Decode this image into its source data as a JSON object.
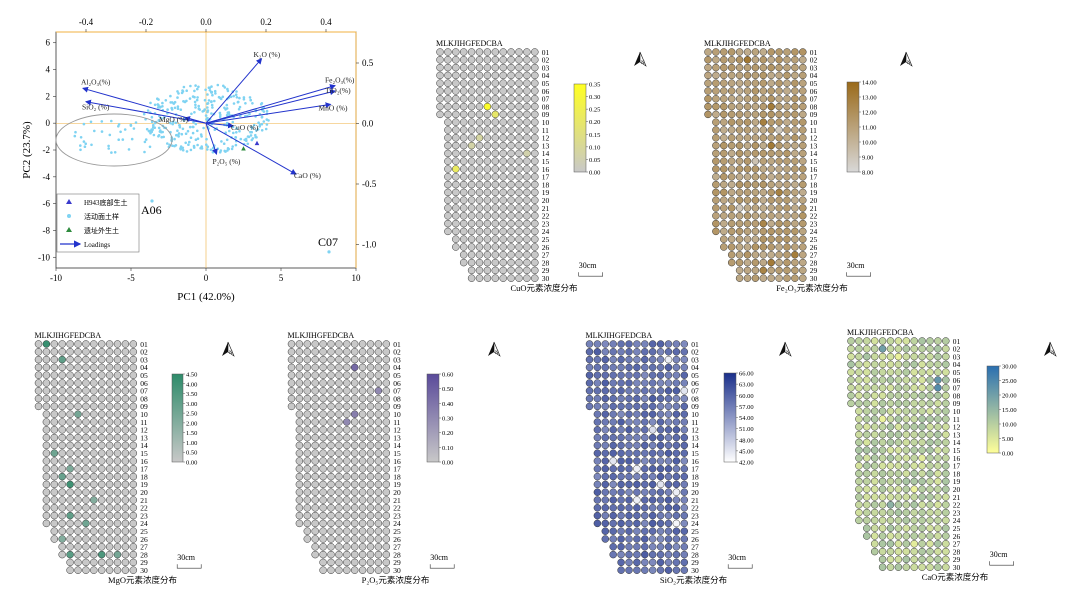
{
  "chart_data": [
    {
      "type": "scatter",
      "title": "",
      "xlabel": "PC1 (42.0%)",
      "ylabel": "PC2 (23.7%)",
      "xlim": [
        -10,
        10
      ],
      "ylim": [
        -10.8,
        6.8
      ],
      "xticks": [
        "-10",
        "-5",
        "0",
        "5",
        "10"
      ],
      "yticks": [
        "6",
        "4",
        "2",
        "0",
        "-2",
        "-4",
        "-6",
        "-8",
        "-10"
      ],
      "top_ticks": [
        "-0.4",
        "-0.2",
        "0.0",
        "0.2",
        "0.4"
      ],
      "right_ticks": [
        "0.5",
        "0.0",
        "-0.5",
        "-1.0"
      ],
      "legend": [
        {
          "label": "H943底部生土",
          "color": "#3a3acc",
          "marker": "triangle"
        },
        {
          "label": "活动面土样",
          "color": "#7fd3f2",
          "marker": "circle"
        },
        {
          "label": "遗址外生土",
          "color": "#2e8b3e",
          "marker": "triangle"
        },
        {
          "label": "Loadings",
          "color": "#2233cc",
          "marker": "arrow"
        }
      ],
      "loadings": [
        {
          "name": "K₂O (%)",
          "x": 3.7,
          "y": 4.8
        },
        {
          "name": "Fe₂O₃(%)",
          "x": 8.6,
          "y": 2.8
        },
        {
          "name": "TiO₂(%)",
          "x": 8.6,
          "y": 2.4
        },
        {
          "name": "MnO (%)",
          "x": 8.3,
          "y": 1.4
        },
        {
          "name": "Al₂O₃(%)",
          "x": -8.2,
          "y": 2.6
        },
        {
          "name": "SiO₂ (%)",
          "x": -8.0,
          "y": 1.6
        },
        {
          "name": "MgO (%)",
          "x": -1.4,
          "y": 0.4
        },
        {
          "name": "CuO (%)",
          "x": 1.8,
          "y": -0.2
        },
        {
          "name": "P₂O₅ (%)",
          "x": 0.7,
          "y": -2.3
        },
        {
          "name": "CaO (%)",
          "x": 6.0,
          "y": -3.8
        }
      ],
      "annotations": [
        "A06",
        "C07"
      ],
      "outliers": [
        {
          "name": "A06",
          "x": -3.6,
          "y": -5.8
        },
        {
          "name": "C07",
          "x": 8.2,
          "y": -9.6
        }
      ],
      "special_points": [
        {
          "series": "H943底部生土",
          "x": 3.4,
          "y": -1.5
        },
        {
          "series": "遗址外生土",
          "x": 2.5,
          "y": -1.9
        }
      ],
      "ellipse_center": [
        -6.1,
        -1.0
      ]
    },
    {
      "type": "heatmap",
      "id": "cuo",
      "title": "CuO元素浓度分布",
      "columns": [
        "M",
        "L",
        "K",
        "J",
        "I",
        "H",
        "G",
        "F",
        "E",
        "D",
        "C",
        "B",
        "A"
      ],
      "rows": [
        "01",
        "02",
        "03",
        "04",
        "05",
        "06",
        "07",
        "08",
        "09",
        "10",
        "11",
        "12",
        "13",
        "14",
        "15",
        "16",
        "17",
        "18",
        "19",
        "20",
        "21",
        "22",
        "23",
        "24",
        "25",
        "26",
        "27",
        "28",
        "29",
        "30"
      ],
      "colorbar_ticks": [
        "0.35",
        "0.30",
        "0.25",
        "0.20",
        "0.15",
        "0.10",
        "0.05",
        "0.00"
      ],
      "range": [
        0,
        0.35
      ],
      "colors": [
        "#c8c8c8",
        "#ffff22"
      ],
      "scale_label": "30cm",
      "hotspots": [
        [
          8,
          6,
          0.33
        ],
        [
          9,
          7,
          0.2
        ],
        [
          12,
          5,
          0.08
        ],
        [
          13,
          4,
          0.07
        ],
        [
          14,
          11,
          0.06
        ],
        [
          16,
          2,
          0.22
        ]
      ]
    },
    {
      "type": "heatmap",
      "id": "fe2o3",
      "title": "Fe₂O₃元素浓度分布",
      "columns": [
        "M",
        "L",
        "K",
        "J",
        "I",
        "H",
        "G",
        "F",
        "E",
        "D",
        "C",
        "B",
        "A"
      ],
      "rows": [
        "01",
        "02",
        "03",
        "04",
        "05",
        "06",
        "07",
        "08",
        "09",
        "10",
        "11",
        "12",
        "13",
        "14",
        "15",
        "16",
        "17",
        "18",
        "19",
        "20",
        "21",
        "22",
        "23",
        "24",
        "25",
        "26",
        "27",
        "28",
        "29",
        "30"
      ],
      "colorbar_ticks": [
        "14.00",
        "13.00",
        "12.00",
        "11.00",
        "10.00",
        "9.00",
        "8.00"
      ],
      "range": [
        8,
        14
      ],
      "colors": [
        "#d8d8d8",
        "#9a6a1a"
      ],
      "scale_label": "30cm",
      "baseline": 11.0,
      "hotspots": [
        [
          2,
          5,
          13.2
        ],
        [
          8,
          8,
          13.0
        ],
        [
          10,
          7,
          12.8
        ],
        [
          11,
          9,
          9.0
        ],
        [
          13,
          8,
          13.1
        ],
        [
          15,
          6,
          9.2
        ],
        [
          19,
          9,
          12.7
        ],
        [
          21,
          4,
          9.1
        ],
        [
          23,
          7,
          12.5
        ],
        [
          27,
          11,
          12.9
        ],
        [
          28,
          8,
          13.0
        ],
        [
          29,
          7,
          12.6
        ]
      ]
    },
    {
      "type": "heatmap",
      "id": "mgo",
      "title": "MgO元素浓度分布",
      "columns": [
        "M",
        "L",
        "K",
        "J",
        "I",
        "H",
        "G",
        "F",
        "E",
        "D",
        "C",
        "B",
        "A"
      ],
      "rows": [
        "01",
        "02",
        "03",
        "04",
        "05",
        "06",
        "07",
        "08",
        "09",
        "10",
        "11",
        "12",
        "13",
        "14",
        "15",
        "16",
        "17",
        "18",
        "19",
        "20",
        "21",
        "22",
        "23",
        "24",
        "25",
        "26",
        "27",
        "28",
        "29",
        "30"
      ],
      "colorbar_ticks": [
        "4.50",
        "4.00",
        "3.50",
        "3.00",
        "2.50",
        "2.00",
        "1.50",
        "1.00",
        "0.50",
        "0.00"
      ],
      "range": [
        0,
        4.5
      ],
      "colors": [
        "#c8c8c8",
        "#2e8b6a"
      ],
      "scale_label": "30cm",
      "hotspots": [
        [
          1,
          1,
          4.2
        ],
        [
          3,
          3,
          3.0
        ],
        [
          10,
          5,
          2.4
        ],
        [
          15,
          2,
          2.6
        ],
        [
          17,
          4,
          2.2
        ],
        [
          18,
          3,
          2.8
        ],
        [
          19,
          4,
          4.0
        ],
        [
          21,
          7,
          2.0
        ],
        [
          23,
          4,
          3.0
        ],
        [
          24,
          6,
          2.6
        ],
        [
          26,
          3,
          2.0
        ],
        [
          28,
          4,
          3.2
        ],
        [
          28,
          8,
          3.6
        ],
        [
          28,
          10,
          2.4
        ]
      ]
    },
    {
      "type": "heatmap",
      "id": "p2o5",
      "title": "P₂O₅元素浓度分布",
      "columns": [
        "M",
        "L",
        "K",
        "J",
        "I",
        "H",
        "G",
        "F",
        "E",
        "D",
        "C",
        "B",
        "A"
      ],
      "rows": [
        "01",
        "02",
        "03",
        "04",
        "05",
        "06",
        "07",
        "08",
        "09",
        "10",
        "11",
        "12",
        "13",
        "14",
        "15",
        "16",
        "17",
        "18",
        "19",
        "20",
        "21",
        "22",
        "23",
        "24",
        "25",
        "26",
        "27",
        "28",
        "29",
        "30"
      ],
      "colorbar_ticks": [
        "0.60",
        "0.50",
        "0.40",
        "0.30",
        "0.20",
        "0.10",
        "0.00"
      ],
      "range": [
        0,
        0.6
      ],
      "colors": [
        "#c8c8c8",
        "#5a4a9a"
      ],
      "scale_label": "30cm",
      "hotspots": [
        [
          4,
          8,
          0.45
        ],
        [
          6,
          13,
          0.5
        ],
        [
          7,
          11,
          0.3
        ],
        [
          10,
          8,
          0.35
        ],
        [
          11,
          7,
          0.3
        ]
      ]
    },
    {
      "type": "heatmap",
      "id": "sio2",
      "title": "SiO₂元素浓度分布",
      "columns": [
        "M",
        "L",
        "K",
        "J",
        "I",
        "H",
        "G",
        "F",
        "E",
        "D",
        "C",
        "B",
        "A"
      ],
      "rows": [
        "01",
        "02",
        "03",
        "04",
        "05",
        "06",
        "07",
        "08",
        "09",
        "10",
        "11",
        "12",
        "13",
        "14",
        "15",
        "16",
        "17",
        "18",
        "19",
        "20",
        "21",
        "22",
        "23",
        "24",
        "25",
        "26",
        "27",
        "28",
        "29",
        "30"
      ],
      "colorbar_ticks": [
        "66.00",
        "63.00",
        "60.00",
        "57.00",
        "54.00",
        "51.00",
        "48.00",
        "45.00",
        "42.00"
      ],
      "range": [
        42,
        66
      ],
      "colors": [
        "#ffffff",
        "#1a2f8a"
      ],
      "scale_label": "30cm",
      "baseline": 58.0,
      "hotspots": [
        [
          3,
          10,
          44
        ],
        [
          7,
          12,
          45
        ],
        [
          12,
          8,
          46
        ],
        [
          16,
          3,
          45
        ],
        [
          17,
          6,
          44
        ],
        [
          19,
          9,
          45
        ],
        [
          21,
          6,
          44
        ],
        [
          20,
          11,
          44
        ],
        [
          24,
          11,
          43
        ]
      ]
    },
    {
      "type": "heatmap",
      "id": "cao",
      "title": "CaO元素浓度分布",
      "columns": [
        "M",
        "L",
        "K",
        "J",
        "I",
        "H",
        "G",
        "F",
        "E",
        "D",
        "C",
        "B",
        "A"
      ],
      "rows": [
        "01",
        "02",
        "03",
        "04",
        "05",
        "06",
        "07",
        "08",
        "09",
        "10",
        "11",
        "12",
        "13",
        "14",
        "15",
        "16",
        "17",
        "18",
        "19",
        "20",
        "21",
        "22",
        "23",
        "24",
        "25",
        "26",
        "27",
        "28",
        "29",
        "30"
      ],
      "colorbar_ticks": [
        "30.00",
        "25.00",
        "20.00",
        "15.00",
        "10.00",
        "5.00",
        "0.00"
      ],
      "range": [
        0,
        30
      ],
      "colors": [
        "#ffff99",
        "#2a6fb0"
      ],
      "scale_label": "30cm",
      "baseline": 9.0,
      "hotspots": [
        [
          2,
          4,
          20
        ],
        [
          6,
          11,
          22
        ],
        [
          7,
          11,
          24
        ],
        [
          3,
          6,
          3
        ],
        [
          11,
          4,
          3
        ],
        [
          16,
          9,
          4
        ],
        [
          22,
          5,
          16
        ],
        [
          20,
          8,
          3
        ],
        [
          27,
          8,
          4
        ]
      ]
    }
  ]
}
